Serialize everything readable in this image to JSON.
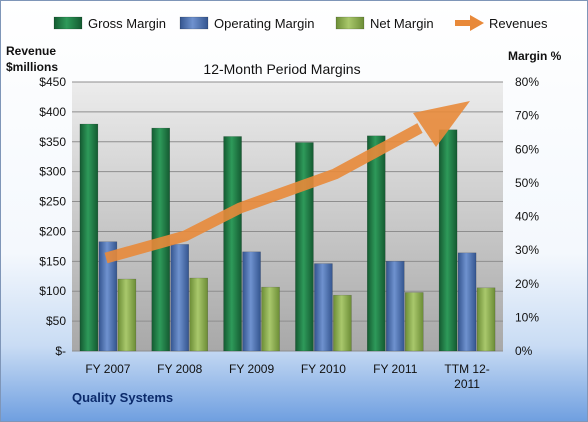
{
  "chart_data": {
    "type": "bar",
    "title": "12-Month Period Margins",
    "company": "Quality Systems",
    "categories": [
      "FY 2007",
      "FY 2008",
      "FY 2009",
      "FY 2010",
      "FY 2011",
      "TTM 12-2011"
    ],
    "category_lines": [
      [
        "FY 2007"
      ],
      [
        "FY 2008"
      ],
      [
        "FY 2009"
      ],
      [
        "FY 2010"
      ],
      [
        "FY 2011"
      ],
      [
        "TTM 12-",
        "2011"
      ]
    ],
    "series": [
      {
        "name": "Gross Margin",
        "values": [
          67.5,
          66.3,
          63.8,
          62.0,
          64.0,
          65.8
        ],
        "color": "#1f7a45"
      },
      {
        "name": "Operating Margin",
        "values": [
          32.5,
          31.7,
          29.5,
          26.0,
          26.7,
          29.2
        ],
        "color": "#4a6fb0"
      },
      {
        "name": "Net Margin",
        "values": [
          21.4,
          21.7,
          19.0,
          16.6,
          17.4,
          18.8
        ],
        "color": "#8aac4e"
      }
    ],
    "arrow_series": {
      "name": "Revenues",
      "color": "#e8893a"
    },
    "left_axis": {
      "label_lines": [
        "Revenue",
        "$millions"
      ],
      "min": 0,
      "max": 450,
      "step": 50,
      "ticks": [
        "$-",
        "$50",
        "$100",
        "$150",
        "$200",
        "$250",
        "$300",
        "$350",
        "$400",
        "$450"
      ]
    },
    "right_axis": {
      "label": "Margin %",
      "min": 0,
      "max": 80,
      "step": 10,
      "ticks": [
        "0%",
        "10%",
        "20%",
        "30%",
        "40%",
        "50%",
        "60%",
        "70%",
        "80%"
      ]
    },
    "grid": true,
    "legend_position": "top"
  }
}
